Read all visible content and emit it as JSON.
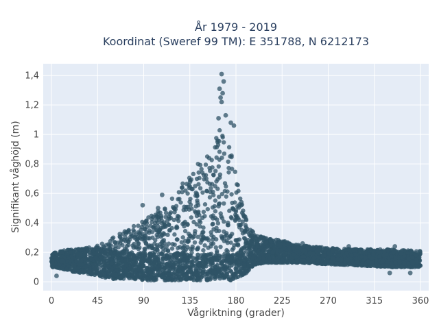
{
  "chart_data": {
    "type": "scatter",
    "title_line1": "År 1979 - 2019",
    "title_line2": "Koordinat (Sweref 99 TM): E 351788, N 6212173",
    "xlabel": "Vågriktning (grader)",
    "ylabel": "Signifikant våghöjd (m)",
    "xlim": [
      -8,
      368
    ],
    "ylim": [
      -0.06,
      1.48
    ],
    "x_ticks": [
      0,
      45,
      90,
      135,
      180,
      225,
      270,
      315,
      360
    ],
    "x_tick_labels": [
      "0",
      "45",
      "90",
      "135",
      "180",
      "225",
      "270",
      "315",
      "360"
    ],
    "y_ticks": [
      0,
      0.2,
      0.4,
      0.6,
      0.8,
      1.0,
      1.2,
      1.4
    ],
    "y_tick_labels": [
      "0",
      "0,2",
      "0,4",
      "0,6",
      "0,8",
      "1",
      "1,2",
      "1,4"
    ],
    "grid": true,
    "marker_color": "#2f5366",
    "plot_background": "#e5ecf6",
    "envelope": {
      "x": [
        0,
        10,
        20,
        30,
        40,
        50,
        60,
        70,
        80,
        90,
        100,
        110,
        120,
        130,
        140,
        150,
        155,
        160,
        165,
        170,
        175,
        180,
        185,
        190,
        195,
        200,
        210,
        225,
        240,
        270,
        300,
        330,
        360
      ],
      "y_max": [
        0.2,
        0.21,
        0.22,
        0.23,
        0.24,
        0.26,
        0.3,
        0.34,
        0.38,
        0.42,
        0.46,
        0.52,
        0.6,
        0.7,
        0.78,
        0.85,
        0.9,
        0.96,
        1.08,
        1.02,
        0.94,
        0.72,
        0.55,
        0.42,
        0.35,
        0.32,
        0.3,
        0.28,
        0.25,
        0.23,
        0.22,
        0.22,
        0.21
      ],
      "y_min": [
        0.1,
        0.09,
        0.07,
        0.06,
        0.05,
        0.03,
        0.02,
        0.02,
        0.02,
        0.01,
        0.01,
        0.01,
        0.01,
        0.01,
        0.01,
        0.01,
        0.01,
        0.01,
        0.01,
        0.01,
        0.01,
        0.02,
        0.04,
        0.06,
        0.1,
        0.12,
        0.13,
        0.13,
        0.13,
        0.12,
        0.11,
        0.1,
        0.1
      ]
    },
    "outliers": [
      {
        "x": 166,
        "y": 1.41
      },
      {
        "x": 168,
        "y": 1.36
      },
      {
        "x": 164,
        "y": 1.31
      },
      {
        "x": 167,
        "y": 1.28
      },
      {
        "x": 165,
        "y": 1.25
      },
      {
        "x": 166,
        "y": 1.22
      },
      {
        "x": 163,
        "y": 1.11
      },
      {
        "x": 170,
        "y": 1.13
      },
      {
        "x": 175,
        "y": 1.08
      },
      {
        "x": 178,
        "y": 1.06
      },
      {
        "x": 108,
        "y": 0.59
      },
      {
        "x": 89,
        "y": 0.52
      },
      {
        "x": 104,
        "y": 0.5
      },
      {
        "x": 245,
        "y": 0.26
      },
      {
        "x": 290,
        "y": 0.24
      },
      {
        "x": 335,
        "y": 0.24
      },
      {
        "x": 5,
        "y": 0.04
      },
      {
        "x": 350,
        "y": 0.06
      },
      {
        "x": 330,
        "y": 0.06
      }
    ]
  }
}
